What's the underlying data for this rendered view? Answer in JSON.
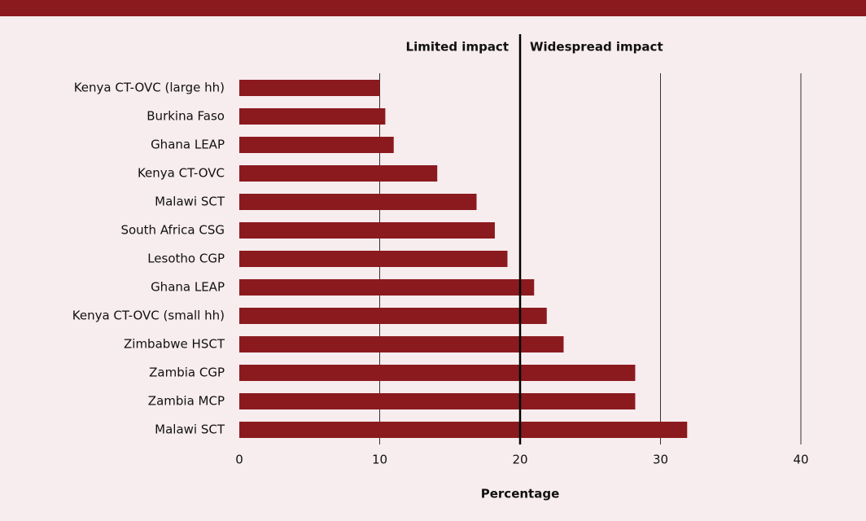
{
  "chart_data": {
    "type": "barh",
    "xlabel": "Percentage",
    "annotations": {
      "left": "Limited impact",
      "right": "Widespread impact"
    },
    "threshold": 20,
    "categories": [
      "Kenya CT-OVC (large hh)",
      "Burkina Faso",
      "Ghana LEAP",
      "Kenya CT-OVC",
      "Malawi SCT",
      "South Africa CSG",
      "Lesotho CGP",
      "Ghana LEAP",
      "Kenya CT-OVC (small hh)",
      "Zimbabwe HSCT",
      "Zambia CGP",
      "Zambia MCP",
      "Malawi SCT"
    ],
    "values": [
      10.0,
      10.4,
      11.0,
      14.1,
      16.9,
      18.2,
      19.1,
      21.0,
      21.9,
      23.1,
      28.2,
      28.2,
      31.9
    ],
    "color": "#8b1a1e",
    "xlim": [
      0,
      40
    ],
    "xticks": [
      0,
      10,
      20,
      30,
      40
    ],
    "grid": true
  }
}
